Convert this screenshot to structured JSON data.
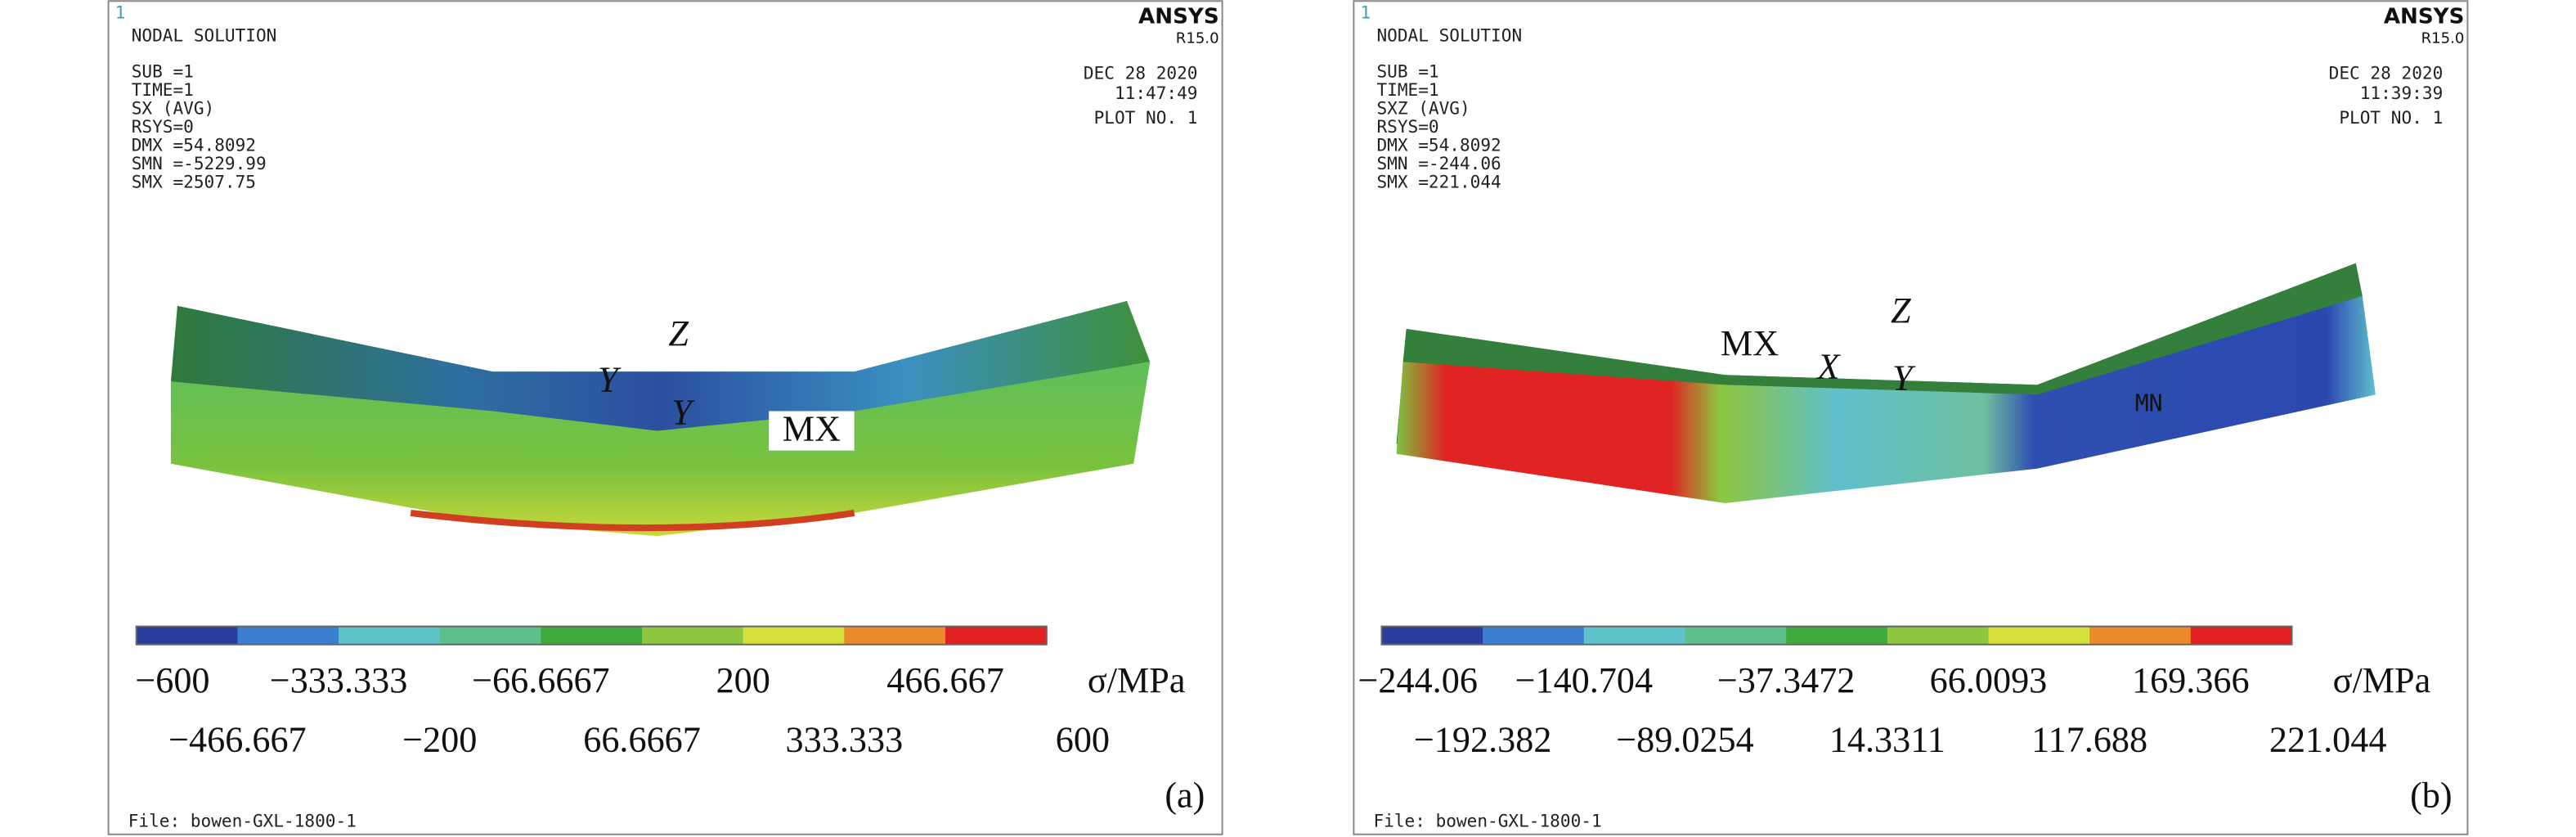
{
  "panels": [
    {
      "corner": "1",
      "header": "NODAL SOLUTION",
      "info": [
        "SUB =1",
        "TIME=1",
        "SX      (AVG)",
        "RSYS=0",
        "DMX =54.8092",
        "SMN =-5229.99",
        "SMX =2507.75"
      ],
      "brand": "ANSYS",
      "version": "R15.0",
      "date": "DEC 28 2020",
      "time": "11:47:49",
      "plot": "PLOT NO.   1",
      "annotations": [
        "Z",
        "Y",
        "Y",
        "MX"
      ],
      "scale_top": [
        "−600",
        "−333.333",
        "−66.6667",
        "200",
        "466.667"
      ],
      "scale_bottom": [
        "−466.667",
        "−200",
        "66.6667",
        "333.333",
        "600"
      ],
      "unit": "σ/MPa",
      "file": "File: bowen-GXL-1800-1",
      "tag": "(a)"
    },
    {
      "corner": "1",
      "header": "NODAL SOLUTION",
      "info": [
        "SUB =1",
        "TIME=1",
        "SXZ      (AVG)",
        "RSYS=0",
        "DMX =54.8092",
        "SMN =-244.06",
        "SMX =221.044"
      ],
      "brand": "ANSYS",
      "version": "R15.0",
      "date": "DEC 28 2020",
      "time": "11:39:39",
      "plot": "PLOT NO.   1",
      "annotations": [
        "MX",
        "X",
        "Y",
        "Z",
        "MN"
      ],
      "scale_top": [
        "−244.06",
        "−140.704",
        "−37.3472",
        "66.0093",
        "169.366"
      ],
      "scale_bottom": [
        "−192.382",
        "−89.0254",
        "14.3311",
        "117.688",
        "221.044"
      ],
      "unit": "σ/MPa",
      "file": "File: bowen-GXL-1800-1",
      "tag": "(b)"
    }
  ]
}
